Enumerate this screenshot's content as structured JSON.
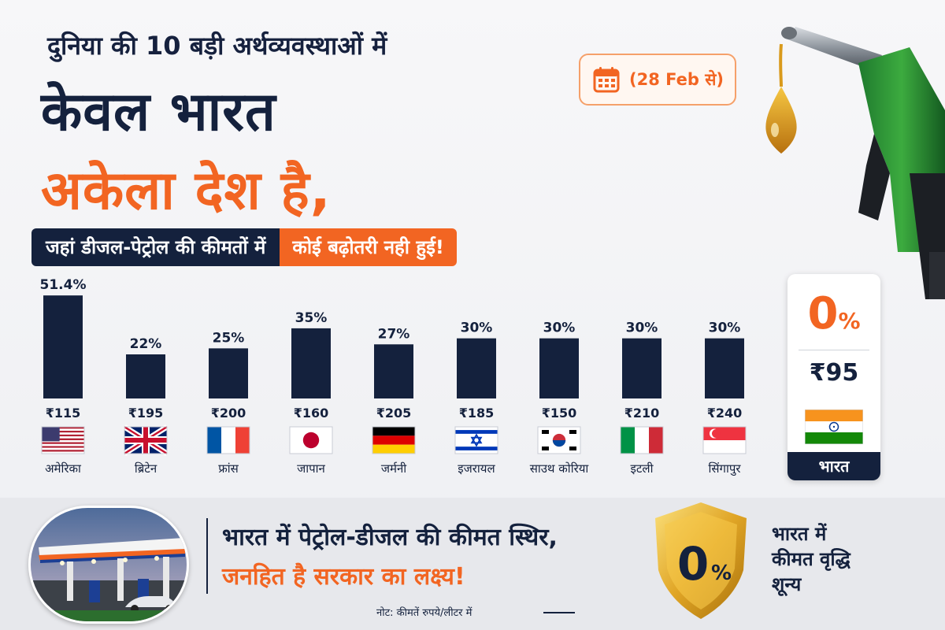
{
  "headline": {
    "sub": "दुनिया की 10 बड़ी अर्थव्यवस्थाओं में",
    "line1": "केवल भारत",
    "line2": "अकेला देश है,",
    "banner_a": "जहां डीजल-पेट्रोल की कीमतों में",
    "banner_b": "कोई बढ़ोतरी नही हुई!"
  },
  "date_badge": {
    "text": "(28 Feb से)",
    "icon": "calendar-icon"
  },
  "chart_data": {
    "type": "bar",
    "categories": [
      "अमेरिका",
      "ब्रिटेन",
      "फ्रांस",
      "जापान",
      "जर्मनी",
      "इजरायल",
      "साउथ कोरिया",
      "इटली",
      "सिंगापुर"
    ],
    "values": [
      51.4,
      22,
      25,
      35,
      27,
      30,
      30,
      30,
      30
    ],
    "value_labels": [
      "51.4%",
      "22%",
      "25%",
      "35%",
      "27%",
      "30%",
      "30%",
      "30%",
      "30%"
    ],
    "prices": [
      "₹115",
      "₹195",
      "₹200",
      "₹160",
      "₹205",
      "₹185",
      "₹150",
      "₹210",
      "₹240"
    ],
    "flags": [
      "usa-flag",
      "uk-flag",
      "france-flag",
      "japan-flag",
      "germany-flag",
      "israel-flag",
      "south-korea-flag",
      "italy-flag",
      "singapore-flag"
    ],
    "ylim": [
      0,
      55
    ],
    "bar_color": "#14213d",
    "grid": false
  },
  "india": {
    "pct_num": "0",
    "pct_sym": "%",
    "price": "₹95",
    "name": "भारत",
    "flag": "india-flag"
  },
  "bottom": {
    "msg1": "भारत में पेट्रोल-डीजल की कीमत स्थिर,",
    "msg2": "जनहित है सरकार का लक्ष्य!",
    "note": "नोट: कीमतें रुपये/लीटर में",
    "shield_num": "0",
    "shield_sym": "%",
    "side1": "भारत में",
    "side2": "कीमत वृद्धि",
    "side3": "शून्य"
  },
  "colors": {
    "navy": "#14213d",
    "orange": "#f26522",
    "gold": "#e0a526"
  }
}
